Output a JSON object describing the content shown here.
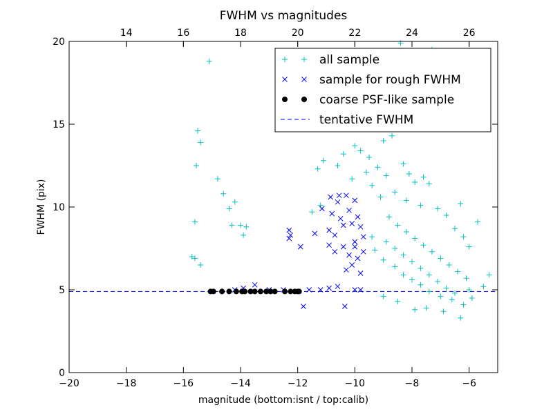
{
  "chart_data": {
    "type": "scatter",
    "title": "FWHM vs magnitudes",
    "xlabel": "magnitude (bottom:isnt / top:calib)",
    "ylabel": "FWHM (pix)",
    "xlim": [
      -20,
      -5
    ],
    "ylim": [
      0,
      20
    ],
    "x_ticks": [
      -20,
      -18,
      -16,
      -14,
      -12,
      -10,
      -8,
      -6
    ],
    "x_tick_labels": [
      "−20",
      "−18",
      "−16",
      "−14",
      "−12",
      "−10",
      "−8",
      "−6"
    ],
    "y_ticks": [
      0,
      5,
      10,
      15,
      20
    ],
    "y_tick_labels": [
      "0",
      "5",
      "10",
      "15",
      "20"
    ],
    "top_axis": {
      "offset_from_bottom": 32,
      "ticks": [
        14,
        16,
        18,
        20,
        22,
        24,
        26
      ],
      "tick_labels": [
        "14",
        "16",
        "18",
        "20",
        "22",
        "24",
        "26"
      ]
    },
    "grid": false,
    "legend_position": "upper right",
    "tentative_fwhm": 4.9,
    "series": [
      {
        "name": "all sample",
        "marker": "+",
        "color": "#00bfbf",
        "points": [
          [
            -15.1,
            18.8
          ],
          [
            -15.5,
            14.6
          ],
          [
            -15.4,
            13.9
          ],
          [
            -15.55,
            12.5
          ],
          [
            -14.8,
            11.7
          ],
          [
            -14.6,
            10.8
          ],
          [
            -14.2,
            10.3
          ],
          [
            -14.4,
            9.9
          ],
          [
            -15.6,
            9.1
          ],
          [
            -14.3,
            8.9
          ],
          [
            -14.0,
            8.9
          ],
          [
            -13.8,
            8.8
          ],
          [
            -13.9,
            8.3
          ],
          [
            -15.7,
            7.0
          ],
          [
            -15.6,
            6.9
          ],
          [
            -15.4,
            6.5
          ],
          [
            -11.3,
            12.3
          ],
          [
            -11.1,
            12.8
          ],
          [
            -10.6,
            12.5
          ],
          [
            -10.4,
            13.2
          ],
          [
            -10.0,
            13.7
          ],
          [
            -9.8,
            13.4
          ],
          [
            -9.5,
            13.0
          ],
          [
            -9.0,
            14.0
          ],
          [
            -8.7,
            14.3
          ],
          [
            -9.6,
            12.1
          ],
          [
            -9.2,
            12.4
          ],
          [
            -8.9,
            11.9
          ],
          [
            -8.3,
            12.6
          ],
          [
            -8.1,
            12.0
          ],
          [
            -7.9,
            11.5
          ],
          [
            -7.6,
            11.8
          ],
          [
            -7.4,
            11.4
          ],
          [
            -8.4,
            19.9
          ],
          [
            -7.3,
            19.5
          ],
          [
            -6.3,
            10.2
          ],
          [
            -5.7,
            9.1
          ],
          [
            -11.5,
            9.7
          ],
          [
            -11.2,
            10.1
          ],
          [
            -10.1,
            11.7
          ],
          [
            -9.4,
            11.3
          ],
          [
            -8.6,
            10.9
          ],
          [
            -9.1,
            10.6
          ],
          [
            -8.2,
            10.4
          ],
          [
            -7.7,
            10.1
          ],
          [
            -7.1,
            9.9
          ],
          [
            -6.8,
            9.5
          ],
          [
            -6.5,
            8.7
          ],
          [
            -6.2,
            8.2
          ],
          [
            -6.0,
            7.6
          ],
          [
            -9.4,
            8.2
          ],
          [
            -9.3,
            7.4
          ],
          [
            -9.0,
            6.8
          ],
          [
            -8.6,
            6.4
          ],
          [
            -8.3,
            5.9
          ],
          [
            -8.0,
            5.6
          ],
          [
            -7.7,
            5.3
          ],
          [
            -7.4,
            4.9
          ],
          [
            -7.0,
            4.6
          ],
          [
            -6.6,
            4.4
          ],
          [
            -6.2,
            4.1
          ],
          [
            -5.9,
            4.5
          ],
          [
            -5.5,
            5.2
          ],
          [
            -5.3,
            5.9
          ],
          [
            -7.9,
            3.8
          ],
          [
            -6.3,
            3.3
          ],
          [
            -6.9,
            3.7
          ],
          [
            -7.5,
            3.9
          ],
          [
            -8.5,
            4.3
          ],
          [
            -9.0,
            4.6
          ],
          [
            -8.8,
            9.4
          ],
          [
            -8.5,
            8.9
          ],
          [
            -8.2,
            8.5
          ],
          [
            -7.9,
            8.1
          ],
          [
            -7.6,
            7.7
          ],
          [
            -7.3,
            7.3
          ],
          [
            -7.0,
            6.9
          ],
          [
            -6.7,
            6.5
          ],
          [
            -6.4,
            6.1
          ],
          [
            -6.1,
            5.7
          ],
          [
            -8.9,
            7.9
          ],
          [
            -8.6,
            7.5
          ],
          [
            -8.3,
            7.1
          ],
          [
            -8.0,
            6.7
          ],
          [
            -7.7,
            6.3
          ],
          [
            -7.4,
            5.9
          ],
          [
            -7.1,
            5.5
          ],
          [
            -6.8,
            5.1
          ],
          [
            -6.5,
            4.8
          ],
          [
            -6.0,
            5.0
          ]
        ]
      },
      {
        "name": "sample for rough FWHM",
        "marker": "x",
        "color": "#0000ff",
        "points": [
          [
            -13.5,
            5.3
          ],
          [
            -13.9,
            5.1
          ],
          [
            -14.2,
            5.0
          ],
          [
            -13.0,
            5.0
          ],
          [
            -12.5,
            5.0
          ],
          [
            -12.3,
            8.6
          ],
          [
            -12.25,
            8.3
          ],
          [
            -12.3,
            8.1
          ],
          [
            -11.9,
            7.6
          ],
          [
            -11.4,
            8.4
          ],
          [
            -11.8,
            4.0
          ],
          [
            -11.15,
            9.9
          ],
          [
            -10.85,
            10.6
          ],
          [
            -10.55,
            10.7
          ],
          [
            -10.6,
            10.3
          ],
          [
            -10.8,
            9.6
          ],
          [
            -10.5,
            9.3
          ],
          [
            -10.4,
            8.9
          ],
          [
            -10.9,
            8.6
          ],
          [
            -10.7,
            8.3
          ],
          [
            -10.3,
            10.7
          ],
          [
            -10.0,
            10.4
          ],
          [
            -10.2,
            9.8
          ],
          [
            -9.9,
            9.4
          ],
          [
            -10.1,
            9.0
          ],
          [
            -9.8,
            8.8
          ],
          [
            -9.7,
            8.2
          ],
          [
            -10.0,
            7.9
          ],
          [
            -10.4,
            7.6
          ],
          [
            -10.7,
            7.3
          ],
          [
            -10.9,
            7.7
          ],
          [
            -10.2,
            7.1
          ],
          [
            -9.9,
            6.9
          ],
          [
            -10.1,
            6.5
          ],
          [
            -10.3,
            6.2
          ],
          [
            -9.8,
            6.0
          ],
          [
            -9.7,
            7.3
          ],
          [
            -10.0,
            7.6
          ],
          [
            -10.6,
            5.2
          ],
          [
            -10.9,
            5.1
          ],
          [
            -11.2,
            5.0
          ],
          [
            -11.6,
            5.0
          ],
          [
            -10.0,
            5.0
          ],
          [
            -9.8,
            5.0
          ],
          [
            -10.35,
            4.0
          ]
        ]
      },
      {
        "name": "coarse PSF-like sample",
        "marker": "o",
        "color": "#000000",
        "points": [
          [
            -15.05,
            4.9
          ],
          [
            -14.95,
            4.9
          ],
          [
            -14.65,
            4.9
          ],
          [
            -14.4,
            4.9
          ],
          [
            -14.15,
            4.9
          ],
          [
            -13.95,
            4.9
          ],
          [
            -13.85,
            4.9
          ],
          [
            -13.65,
            4.9
          ],
          [
            -13.5,
            4.9
          ],
          [
            -13.3,
            4.9
          ],
          [
            -13.1,
            4.9
          ],
          [
            -12.95,
            4.9
          ],
          [
            -12.8,
            4.9
          ],
          [
            -12.45,
            4.9
          ],
          [
            -12.25,
            4.9
          ],
          [
            -12.1,
            4.9
          ],
          [
            -12.0,
            4.9
          ],
          [
            -11.95,
            4.9
          ]
        ]
      },
      {
        "name": "tentative FWHM",
        "marker": "dashed-line",
        "color": "#0000ff"
      }
    ]
  },
  "colors": {
    "all_sample": "#00bfbf",
    "rough_sample": "#0000ff",
    "psf_sample": "#000000",
    "tentative_line": "#0000ff",
    "axes": "#000000",
    "background": "#ffffff"
  }
}
